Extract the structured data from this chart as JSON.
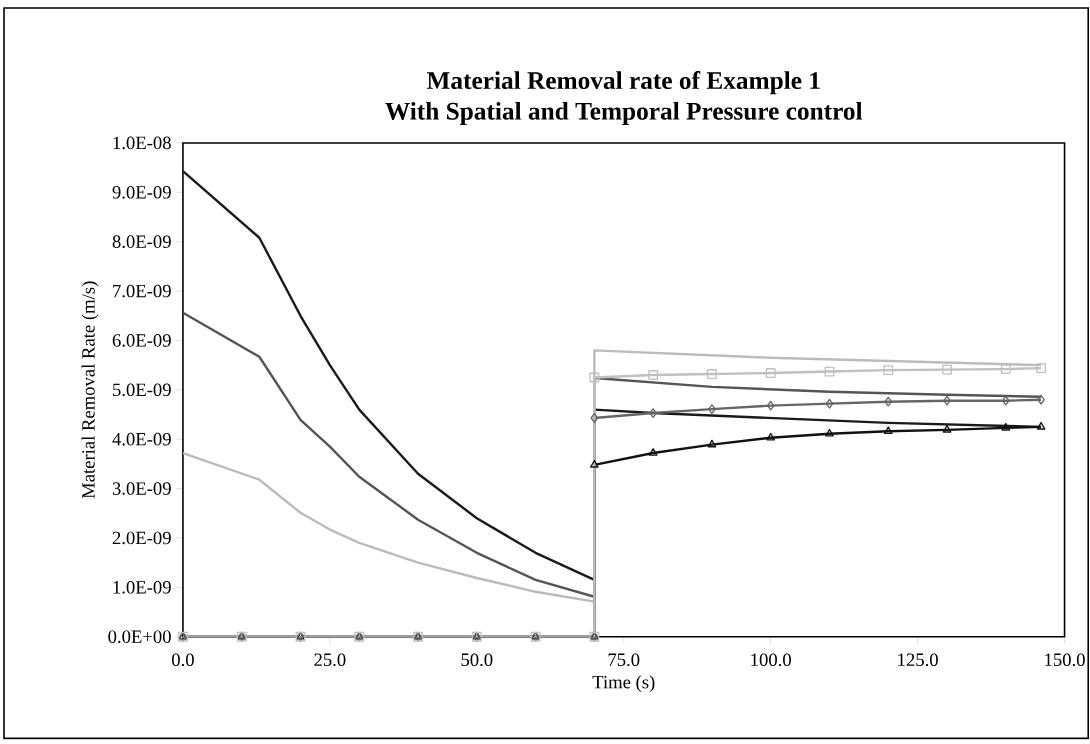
{
  "chart_data": {
    "type": "line",
    "title": "Material Removal rate of Example 1\nWith Spatial and Temporal Pressure control",
    "xlabel": "Time (s)",
    "ylabel": "Material Removal Rate (m/s)",
    "xlim": [
      0,
      150
    ],
    "ylim": [
      0,
      1e-08
    ],
    "xticks": [
      {
        "value": 0,
        "label": "0.0"
      },
      {
        "value": 25,
        "label": "25.0"
      },
      {
        "value": 50,
        "label": "50.0"
      },
      {
        "value": 75,
        "label": "75.0"
      },
      {
        "value": 100,
        "label": "100.0"
      },
      {
        "value": 125,
        "label": "125.0"
      },
      {
        "value": 150,
        "label": "150.0"
      }
    ],
    "yticks": [
      {
        "value": 0,
        "label": "0.0E+00"
      },
      {
        "value": 1e-09,
        "label": "1.0E-09"
      },
      {
        "value": 2e-09,
        "label": "2.0E-09"
      },
      {
        "value": 3e-09,
        "label": "3.0E-09"
      },
      {
        "value": 4e-09,
        "label": "4.0E-09"
      },
      {
        "value": 5e-09,
        "label": "5.0E-09"
      },
      {
        "value": 6e-09,
        "label": "6.0E-09"
      },
      {
        "value": 7e-09,
        "label": "7.0E-09"
      },
      {
        "value": 8e-09,
        "label": "8.0E-09"
      },
      {
        "value": 9e-09,
        "label": "9.0E-09"
      },
      {
        "value": 1e-08,
        "label": "1.0E-08"
      }
    ],
    "grid": false,
    "series": [
      {
        "color": "#1a1a1a",
        "marker": "none",
        "x": [
          0,
          13,
          20,
          25,
          30,
          40,
          50,
          60,
          70,
          70,
          80,
          100,
          120,
          146
        ],
        "values": [
          9.43e-09,
          8.08e-09,
          6.5e-09,
          5.5e-09,
          4.6e-09,
          3.3e-09,
          2.4e-09,
          1.7e-09,
          1.15e-09,
          4.6e-09,
          4.53e-09,
          4.43e-09,
          4.33e-09,
          4.25e-09
        ]
      },
      {
        "color": "#555555",
        "marker": "none",
        "x": [
          0,
          13,
          20,
          25,
          30,
          40,
          50,
          60,
          70,
          70,
          90,
          110,
          130,
          146
        ],
        "values": [
          6.56e-09,
          5.67e-09,
          4.39e-09,
          3.85e-09,
          3.24e-09,
          2.37e-09,
          1.7e-09,
          1.15e-09,
          8.1e-10,
          5.24e-09,
          5.06e-09,
          4.96e-09,
          4.9e-09,
          4.86e-09
        ]
      },
      {
        "color": "#bbbbbb",
        "marker": "none",
        "x": [
          0,
          13,
          20,
          25,
          30,
          40,
          50,
          60,
          70,
          70,
          100,
          146
        ],
        "values": [
          3.72e-09,
          3.18e-09,
          2.51e-09,
          2.17e-09,
          1.9e-09,
          1.5e-09,
          1.19e-09,
          9.1e-10,
          7.1e-10,
          5.8e-09,
          5.65e-09,
          5.5e-09
        ]
      },
      {
        "color": "#111111",
        "marker": "triangle",
        "x": [
          0,
          10,
          20,
          30,
          40,
          50,
          60,
          70,
          70,
          80,
          90,
          100,
          110,
          120,
          130,
          140,
          146
        ],
        "values": [
          0,
          0,
          0,
          0,
          0,
          0,
          0,
          0,
          3.48e-09,
          3.72e-09,
          3.89e-09,
          4.03e-09,
          4.11e-09,
          4.16e-09,
          4.19e-09,
          4.23e-09,
          4.25e-09
        ]
      },
      {
        "color": "#666666",
        "marker": "diamond",
        "x": [
          0,
          10,
          20,
          30,
          40,
          50,
          60,
          70,
          70,
          80,
          90,
          100,
          110,
          120,
          130,
          140,
          146
        ],
        "values": [
          0,
          0,
          0,
          0,
          0,
          0,
          0,
          0,
          4.43e-09,
          4.53e-09,
          4.61e-09,
          4.68e-09,
          4.72e-09,
          4.76e-09,
          4.78e-09,
          4.78e-09,
          4.8e-09
        ]
      },
      {
        "color": "#c0c0c0",
        "marker": "square",
        "x": [
          0,
          10,
          20,
          30,
          40,
          50,
          60,
          70,
          70,
          80,
          90,
          100,
          110,
          120,
          130,
          140,
          146
        ],
        "values": [
          0,
          0,
          0,
          0,
          0,
          0,
          0,
          0,
          5.25e-09,
          5.3e-09,
          5.32e-09,
          5.34e-09,
          5.37e-09,
          5.4e-09,
          5.41e-09,
          5.42e-09,
          5.44e-09
        ]
      }
    ]
  }
}
